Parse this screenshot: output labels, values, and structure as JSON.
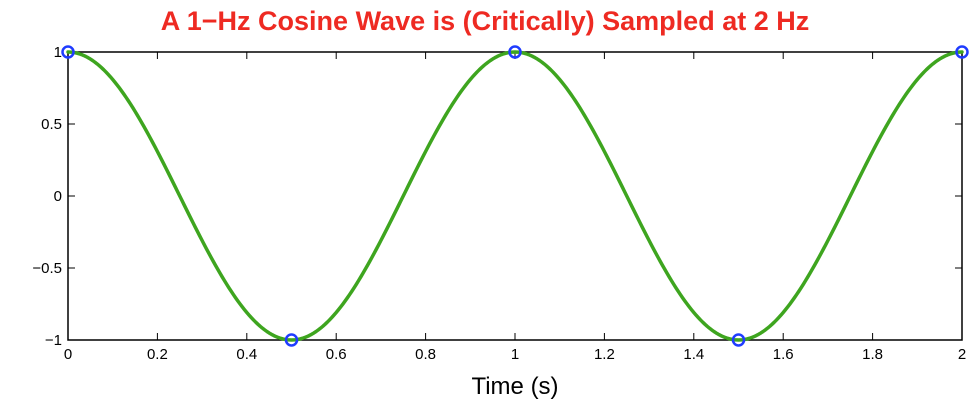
{
  "chart_data": {
    "type": "line",
    "title": "A 1−Hz Cosine Wave is (Critically) Sampled at 2 Hz",
    "xlabel": "Time (s)",
    "ylabel": "",
    "xlim": [
      0,
      2
    ],
    "ylim": [
      -1,
      1
    ],
    "x_ticks": [
      "0",
      "0.2",
      "0.4",
      "0.6",
      "0.8",
      "1",
      "1.2",
      "1.4",
      "1.6",
      "1.8",
      "2"
    ],
    "y_ticks": [
      "1",
      "0.5",
      "0",
      "−0.5",
      "−1"
    ],
    "grid": false,
    "legend": "none",
    "series": [
      {
        "style": "line",
        "function": "cos(2*pi*1*t)",
        "frequency_hz": 1,
        "x_range": [
          0,
          2
        ],
        "color": "#3ea51f"
      },
      {
        "style": "markers",
        "marker": "circle",
        "sample_rate_hz": 2,
        "x": [
          0,
          0.5,
          1,
          1.5,
          2
        ],
        "y": [
          1,
          -1,
          1,
          -1,
          1
        ],
        "color": "#1f3cff"
      }
    ],
    "colors": {
      "title": "#ee2a22",
      "axes": "#000000"
    }
  }
}
